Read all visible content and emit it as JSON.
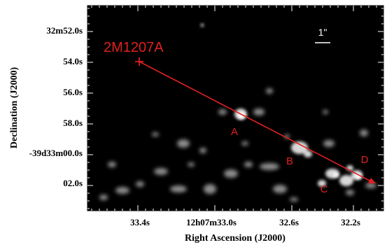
{
  "figure": {
    "ra_ticks": [
      "33.4s",
      "12h07m33.0s",
      "32.6s",
      "32.2s"
    ],
    "dec_ticks": [
      "32m52.0s",
      "54.0s",
      "56.0s",
      "58.0s",
      "-39d33m00.0s",
      "02.0s"
    ],
    "x_axis_title": "Right Ascension (J2000)",
    "y_axis_title": "Declination (J2000)",
    "target_label": "2M1207A",
    "source_labels": [
      "A",
      "B",
      "C",
      "D"
    ],
    "scale_bar_label": "1\"",
    "colors": {
      "annotation": "#e02020",
      "background": "#000000",
      "emission": "#ffffff"
    }
  }
}
